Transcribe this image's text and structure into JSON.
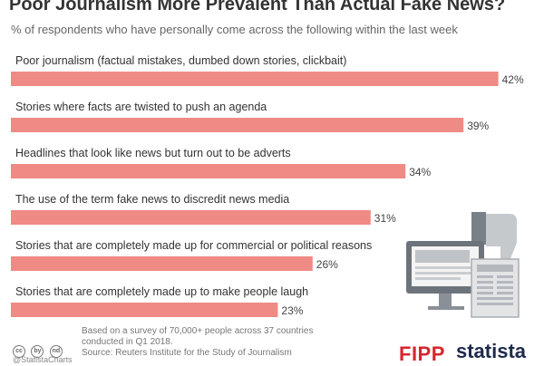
{
  "header": {
    "title": "Poor Journalism More Prevalent Than Actual Fake News?",
    "subtitle": "% of respondents who have personally come across the following within the last week"
  },
  "chart_data": {
    "type": "bar",
    "orientation": "horizontal",
    "categories": [
      "Poor journalism (factual mistakes, dumbed down stories, clickbait)",
      "Stories where facts are twisted to push an agenda",
      "Headlines that look like news but turn out to be adverts",
      "The use of the term fake news to discredit news media",
      "Stories that are completely made up for commercial or political reasons",
      "Stories that are completely made up to make people laugh"
    ],
    "values": [
      42,
      39,
      34,
      31,
      26,
      23
    ],
    "value_labels": [
      "42%",
      "39%",
      "34%",
      "31%",
      "26%",
      "23%"
    ],
    "bar_color": "#f08a84",
    "grid": false,
    "legend": "none"
  },
  "footer": {
    "note_lines": [
      "Based on a survey of 70,000+ people across 37 countries",
      "conducted in Q1 2018.",
      "Source: Reuters Institute for the Study of Journalism"
    ],
    "handle": "@StatistaCharts",
    "cc_icons": [
      "cc",
      "by",
      "nd"
    ],
    "logo_left": "FIPP",
    "logo_right": "statista"
  }
}
